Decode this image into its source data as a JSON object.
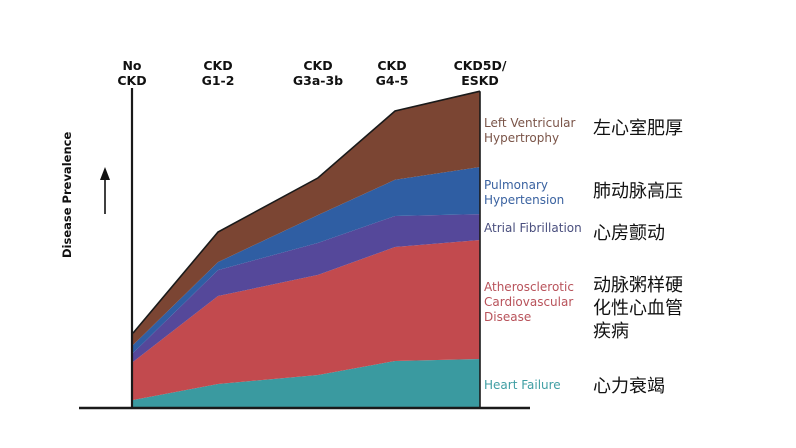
{
  "chart_data": {
    "type": "area",
    "stacked": true,
    "title": "",
    "ylabel": "Disease Prevalence",
    "xlabel": "",
    "ylim": [
      0,
      100
    ],
    "grid": false,
    "categories": [
      "No CKD",
      "CKD G1-2",
      "CKD G3a-3b",
      "CKD G4-5",
      "CKD5D/ ESKD"
    ],
    "category_lines": [
      [
        "No",
        "CKD"
      ],
      [
        "CKD",
        "G1-2"
      ],
      [
        "CKD",
        "G3a-3b"
      ],
      [
        "CKD",
        "G4-5"
      ],
      [
        "CKD5D/",
        "ESKD"
      ]
    ],
    "series": [
      {
        "name": "Heart Failure",
        "name_zh": "心力衰竭",
        "color": "#3a9aa0",
        "values": [
          2.5,
          7.5,
          10.3,
          14.7,
          15.3
        ]
      },
      {
        "name": "Atherosclerotic Cardiovascular Disease",
        "name_lines": [
          "Atherosclerotic",
          "Cardiovascular",
          "Disease"
        ],
        "name_zh_lines": [
          "动脉粥样硬",
          "化性心血管",
          "疾病"
        ],
        "color": "#c24a4e",
        "values": [
          11.9,
          27.5,
          31.3,
          35.6,
          37.2
        ]
      },
      {
        "name": "Atrial Fibrillation",
        "name_zh": "心房颤动",
        "color": "#55489a",
        "values": [
          2.8,
          8.1,
          10.0,
          9.7,
          8.1
        ]
      },
      {
        "name": "Pulmonary Hypertension",
        "name_lines": [
          "Pulmonary",
          "Hypertension"
        ],
        "name_zh": "肺动脉高压",
        "color": "#2f5ea3",
        "values": [
          2.5,
          2.5,
          8.7,
          11.3,
          14.7
        ]
      },
      {
        "name": "Left Ventricular Hypertrophy",
        "name_lines": [
          "Left Ventricular",
          "Hypertrophy"
        ],
        "name_zh": "左心室肥厚",
        "color": "#7b4533",
        "values": [
          3.7,
          9.4,
          11.6,
          21.5,
          23.7
        ]
      }
    ],
    "legend": "right",
    "label_colors": {
      "Heart Failure": "#3f9ea3",
      "Atherosclerotic Cardiovascular Disease": "#b8525a",
      "Atrial Fibrillation": "#4a4f7e",
      "Pulmonary Hypertension": "#3a62a0",
      "Left Ventricular Hypertrophy": "#7a5448"
    }
  }
}
